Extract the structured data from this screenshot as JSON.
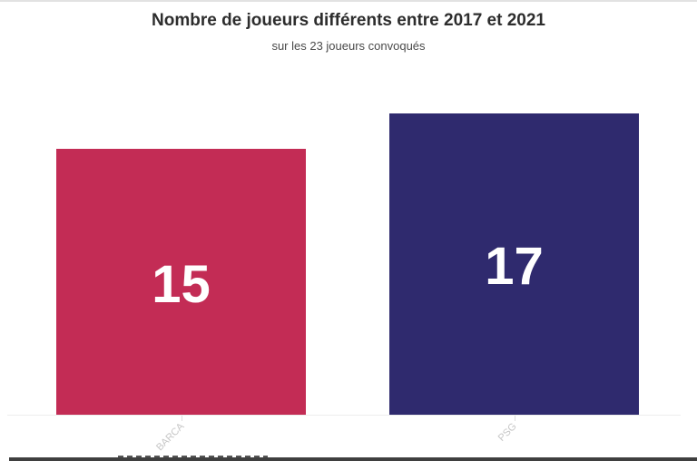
{
  "header": {
    "title": "Nombre de joueurs différents entre 2017 et 2021",
    "subtitle": "sur les 23 joueurs convoqués"
  },
  "chart_data": {
    "type": "bar",
    "orientation": "vertical",
    "title": "Nombre de joueurs différents entre 2017 et 2021",
    "subtitle": "sur les 23 joueurs convoqués",
    "categories": [
      "BARCA",
      "PSG"
    ],
    "values": [
      15,
      17
    ],
    "value_labels": [
      "15",
      "17"
    ],
    "bar_colors": [
      "#c32c55",
      "#2f2a6e"
    ],
    "xlabel": "",
    "ylabel": "",
    "ylim": [
      0,
      17
    ],
    "grid": false,
    "legend": false
  },
  "colors": {
    "value_label": "#ffffff",
    "category_label": "#c6c6c6",
    "baseline": "#ededed",
    "tick": "#dedede",
    "title": "#2d2d2d",
    "subtitle": "#4a4a4a",
    "top_border": "#e2e2e2",
    "footer_band": "#3f3f3f"
  }
}
